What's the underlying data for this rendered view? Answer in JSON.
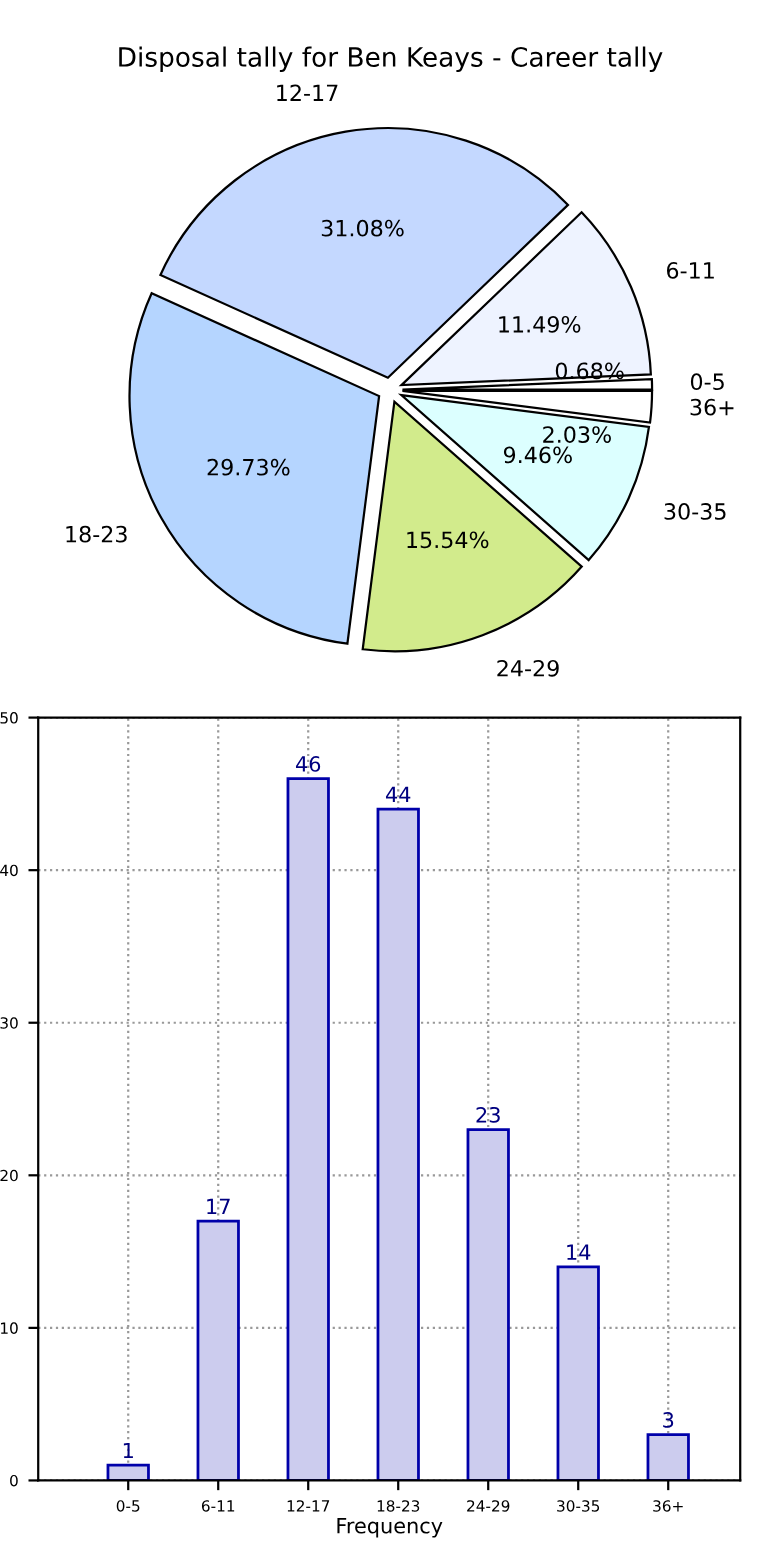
{
  "chart_data": [
    {
      "type": "pie",
      "title": "Disposal tally for Ben Keays - Career tally",
      "categories": [
        "0-5",
        "6-11",
        "12-17",
        "18-23",
        "24-29",
        "30-35",
        "36+"
      ],
      "values": [
        0.68,
        11.49,
        31.08,
        29.73,
        15.54,
        9.46,
        2.03
      ],
      "value_labels": [
        "0.68%",
        "11.49%",
        "31.08%",
        "29.73%",
        "15.54%",
        "9.46%",
        "2.03%"
      ],
      "colors": [
        "#ffffff",
        "#eef3ff",
        "#c4d8ff",
        "#b5d5ff",
        "#d2eb8c",
        "#dcffff",
        "#ffffff"
      ]
    },
    {
      "type": "bar",
      "xlabel": "Frequency",
      "categories": [
        "0-5",
        "6-11",
        "12-17",
        "18-23",
        "24-29",
        "30-35",
        "36+"
      ],
      "values": [
        1,
        17,
        46,
        44,
        23,
        14,
        3
      ],
      "color": "#ccccee",
      "data_labels": true,
      "ylim": [
        0,
        50
      ],
      "yticks": [
        0,
        10,
        20,
        30,
        40,
        50
      ],
      "grid": true
    }
  ]
}
